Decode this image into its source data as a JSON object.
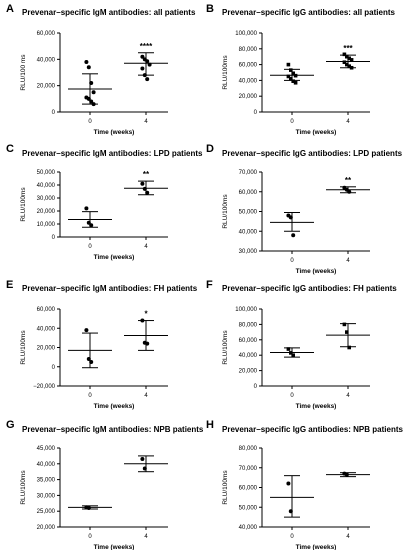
{
  "chart_data": [
    {
      "id": "A",
      "letter": "A",
      "type": "scatter",
      "title": "Prevenar–specific IgM antibodies: all patients",
      "ylabel": "RLU/100 ms",
      "xlabel": "Time (weeks)",
      "categories": [
        "0",
        "4"
      ],
      "ylim": [
        0,
        60000
      ],
      "yticks": [
        "0",
        "20,000",
        "40,000",
        "60,000"
      ],
      "ytickvals": [
        0,
        20000,
        40000,
        60000
      ],
      "marker": "circle",
      "groups": [
        {
          "x": "0",
          "points": [
            38000,
            34000,
            22000,
            15000,
            11000,
            10000,
            8000,
            6000
          ],
          "mean": 17500,
          "err_low": 6000,
          "err_high": 29000
        },
        {
          "x": "4",
          "points": [
            42000,
            40000,
            38500,
            36000,
            33000,
            28000,
            25000
          ],
          "mean": 37000,
          "err_low": 28000,
          "err_high": 45000
        }
      ],
      "significance": {
        "x": "4",
        "label": "****"
      }
    },
    {
      "id": "B",
      "letter": "B",
      "type": "scatter",
      "title": "Prevenar–specific IgG antibodies: all patients",
      "ylabel": "RLU/100ms",
      "xlabel": "Time (weeks)",
      "categories": [
        "0",
        "4"
      ],
      "ylim": [
        0,
        100000
      ],
      "yticks": [
        "0",
        "20,000",
        "40,000",
        "60,000",
        "80,000",
        "100,000"
      ],
      "ytickvals": [
        0,
        20000,
        40000,
        60000,
        80000,
        100000
      ],
      "marker": "square",
      "groups": [
        {
          "x": "0",
          "points": [
            60000,
            53000,
            49000,
            46000,
            45000,
            42000,
            39000,
            37000
          ],
          "mean": 46500,
          "err_low": 40000,
          "err_high": 54000
        },
        {
          "x": "4",
          "points": [
            73000,
            70000,
            68000,
            66000,
            63000,
            60000,
            58000,
            56000
          ],
          "mean": 64000,
          "err_low": 56000,
          "err_high": 72000
        }
      ],
      "significance": {
        "x": "4",
        "label": "***"
      }
    },
    {
      "id": "C",
      "letter": "C",
      "type": "scatter",
      "title": "Prevenar–specific IgM antibodies: LPD patients",
      "ylabel": "RLU/100ms",
      "xlabel": "Time (weeks)",
      "categories": [
        "0",
        "4"
      ],
      "ylim": [
        0,
        50000
      ],
      "yticks": [
        "0",
        "10,000",
        "20,000",
        "30,000",
        "40,000",
        "50,000"
      ],
      "ytickvals": [
        0,
        10000,
        20000,
        30000,
        40000,
        50000
      ],
      "marker": "circle",
      "groups": [
        {
          "x": "0",
          "points": [
            22000,
            11000,
            9000
          ],
          "mean": 13500,
          "err_low": 7500,
          "err_high": 19500
        },
        {
          "x": "4",
          "points": [
            41000,
            37000,
            34000
          ],
          "mean": 37500,
          "err_low": 32500,
          "err_high": 43000
        }
      ],
      "significance": {
        "x": "4",
        "label": "**"
      }
    },
    {
      "id": "D",
      "letter": "D",
      "type": "scatter",
      "title": "Prevenar–specific IgG antibodies: LPD patients",
      "ylabel": "RLU/100ms",
      "xlabel": "Time (weeks)",
      "categories": [
        "0",
        "4"
      ],
      "ylim": [
        30000,
        70000
      ],
      "yticks": [
        "30,000",
        "40,000",
        "50,000",
        "60,000",
        "70,000"
      ],
      "ytickvals": [
        30000,
        40000,
        50000,
        60000,
        70000
      ],
      "marker": "circle",
      "groups": [
        {
          "x": "0",
          "points": [
            48000,
            47000,
            38000
          ],
          "mean": 44500,
          "err_low": 40000,
          "err_high": 49500
        },
        {
          "x": "4",
          "points": [
            62000,
            61000,
            60000
          ],
          "mean": 61000,
          "err_low": 59500,
          "err_high": 62500
        }
      ],
      "significance": {
        "x": "4",
        "label": "**"
      }
    },
    {
      "id": "E",
      "letter": "E",
      "type": "scatter",
      "title": "Prevenar–specific IgM antibodies: FH patients",
      "ylabel": "RLU/100ms",
      "xlabel": "Time (weeks)",
      "categories": [
        "0",
        "4"
      ],
      "ylim": [
        -20000,
        60000
      ],
      "yticks": [
        "−20,000",
        "0",
        "20,000",
        "40,000",
        "60,000"
      ],
      "ytickvals": [
        -20000,
        0,
        20000,
        40000,
        60000
      ],
      "marker": "circle",
      "groups": [
        {
          "x": "0",
          "points": [
            38000,
            8000,
            5000
          ],
          "mean": 17000,
          "err_low": -1000,
          "err_high": 35000
        },
        {
          "x": "4",
          "points": [
            48000,
            25000,
            24000
          ],
          "mean": 32500,
          "err_low": 17000,
          "err_high": 48000
        }
      ],
      "significance": {
        "x": "4",
        "label": "*"
      }
    },
    {
      "id": "F",
      "letter": "F",
      "type": "scatter",
      "title": "Prevenar–specific IgG antibodies: FH patients",
      "ylabel": "RLU/100ms",
      "xlabel": "Time (weeks)",
      "categories": [
        "0",
        "4"
      ],
      "ylim": [
        0,
        100000
      ],
      "yticks": [
        "0",
        "20,000",
        "40,000",
        "60,000",
        "80,000",
        "100,000"
      ],
      "ytickvals": [
        0,
        20000,
        40000,
        60000,
        80000,
        100000
      ],
      "marker": "square",
      "groups": [
        {
          "x": "0",
          "points": [
            48000,
            43000,
            40000
          ],
          "mean": 43500,
          "err_low": 37500,
          "err_high": 49500
        },
        {
          "x": "4",
          "points": [
            80000,
            70000,
            50000
          ],
          "mean": 66000,
          "err_low": 51000,
          "err_high": 81000
        }
      ],
      "significance": null
    },
    {
      "id": "G",
      "letter": "G",
      "type": "scatter",
      "title": "Prevenar–specific IgM antibodies: NPB patients",
      "ylabel": "RLU/100ms",
      "xlabel": "Time (weeks)",
      "categories": [
        "0",
        "4"
      ],
      "ylim": [
        20000,
        45000
      ],
      "yticks": [
        "20,000",
        "25,000",
        "30,000",
        "35,000",
        "40,000",
        "45,000"
      ],
      "ytickvals": [
        20000,
        25000,
        30000,
        35000,
        40000,
        45000
      ],
      "marker": "circle",
      "groups": [
        {
          "x": "0",
          "points": [
            26200,
            26000
          ],
          "mean": 26200,
          "err_low": 25700,
          "err_high": 26700
        },
        {
          "x": "4",
          "points": [
            41500,
            38500
          ],
          "mean": 40000,
          "err_low": 37500,
          "err_high": 42500
        }
      ],
      "significance": null
    },
    {
      "id": "H",
      "letter": "H",
      "type": "scatter",
      "title": "Prevenar–specific IgG antibodies: NPB patients",
      "ylabel": "RLU/100ms",
      "xlabel": "Time (weeks)",
      "categories": [
        "0",
        "4"
      ],
      "ylim": [
        40000,
        80000
      ],
      "yticks": [
        "40,000",
        "50,000",
        "60,000",
        "70,000",
        "80,000"
      ],
      "ytickvals": [
        40000,
        50000,
        60000,
        70000,
        80000
      ],
      "marker": "circle",
      "groups": [
        {
          "x": "0",
          "points": [
            62000,
            48000
          ],
          "mean": 55000,
          "err_low": 45000,
          "err_high": 66000
        },
        {
          "x": "4",
          "points": [
            67000,
            66500
          ],
          "mean": 66500,
          "err_low": 65500,
          "err_high": 67500
        }
      ],
      "significance": null
    }
  ]
}
